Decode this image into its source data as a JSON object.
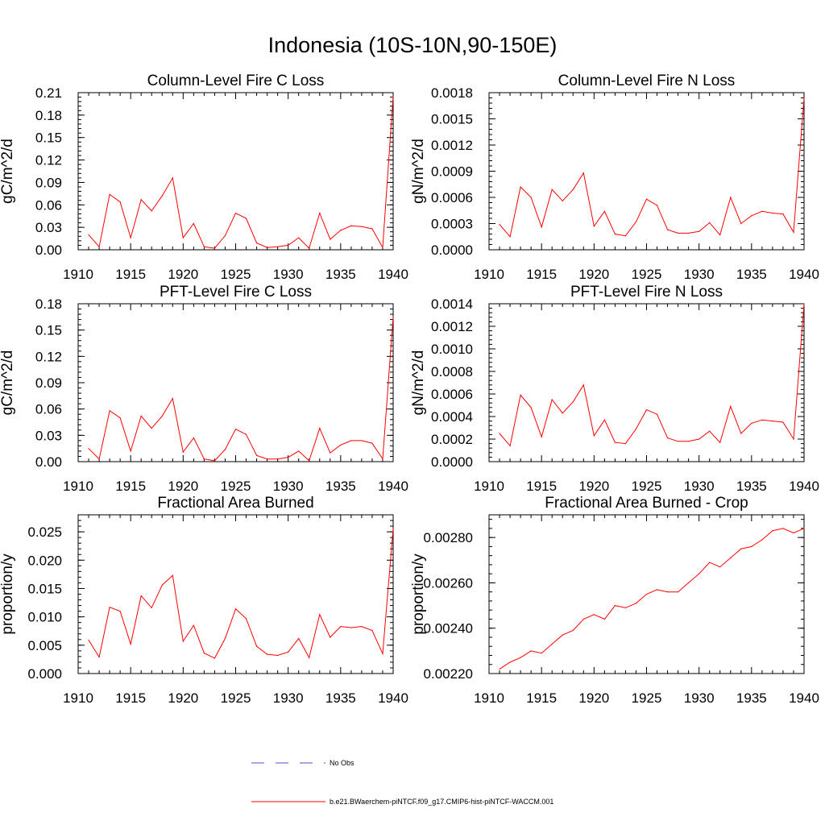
{
  "figure": {
    "title": "Indonesia (10S-10N,90-150E)"
  },
  "colors": {
    "series": "#ff0000",
    "obs": "#4f4fcf",
    "axis": "#000000"
  },
  "legend": {
    "placement": "bottom-center",
    "items": [
      {
        "label": "No Obs",
        "color": "#4f4fcf",
        "dash": "dashed"
      },
      {
        "label": "b.e21.BWaerchem-piNTCF.f09_g17.CMIP6-hist-piNTCF-WACCM.001",
        "color": "#ff0000",
        "dash": "solid"
      }
    ]
  },
  "chart_data": [
    {
      "type": "line",
      "title": "Column-Level Fire C Loss",
      "ylabel": "gC/m^2/d",
      "xlim": [
        1910,
        1940
      ],
      "ylim": [
        0,
        0.21
      ],
      "xticks": [
        "1910",
        "1915",
        "1920",
        "1925",
        "1930",
        "1935",
        "1940"
      ],
      "yticks": [
        "0.00",
        "0.03",
        "0.06",
        "0.09",
        "0.12",
        "0.15",
        "0.18",
        "0.21"
      ],
      "x": [
        1911,
        1912,
        1913,
        1914,
        1915,
        1916,
        1917,
        1918,
        1919,
        1920,
        1921,
        1922,
        1923,
        1924,
        1925,
        1926,
        1927,
        1928,
        1929,
        1930,
        1931,
        1932,
        1933,
        1934,
        1935,
        1936,
        1937,
        1938,
        1939,
        1940
      ],
      "values": [
        0.02,
        0.004,
        0.074,
        0.064,
        0.016,
        0.067,
        0.052,
        0.072,
        0.096,
        0.016,
        0.035,
        0.004,
        0.002,
        0.019,
        0.049,
        0.042,
        0.009,
        0.003,
        0.004,
        0.006,
        0.016,
        0.002,
        0.049,
        0.014,
        0.026,
        0.032,
        0.031,
        0.028,
        0.003,
        0.205
      ]
    },
    {
      "type": "line",
      "title": "Column-Level Fire N Loss",
      "ylabel": "gN/m^2/d",
      "xlim": [
        1910,
        1940
      ],
      "ylim": [
        0,
        0.0018
      ],
      "xticks": [
        "1910",
        "1915",
        "1920",
        "1925",
        "1930",
        "1935",
        "1940"
      ],
      "yticks": [
        "0.0000",
        "0.0003",
        "0.0006",
        "0.0009",
        "0.0012",
        "0.0015",
        "0.0018"
      ],
      "x": [
        1911,
        1912,
        1913,
        1914,
        1915,
        1916,
        1917,
        1918,
        1919,
        1920,
        1921,
        1922,
        1923,
        1924,
        1925,
        1926,
        1927,
        1928,
        1929,
        1930,
        1931,
        1932,
        1933,
        1934,
        1935,
        1936,
        1937,
        1938,
        1939,
        1940
      ],
      "values": [
        0.00029,
        0.00015,
        0.00072,
        0.0006,
        0.00026,
        0.00069,
        0.00056,
        0.00069,
        0.00088,
        0.00027,
        0.00044,
        0.00018,
        0.00016,
        0.00032,
        0.00058,
        0.00051,
        0.00023,
        0.00019,
        0.00019,
        0.00021,
        0.00031,
        0.00017,
        0.0006,
        0.0003,
        0.00039,
        0.00044,
        0.00042,
        0.00041,
        0.0002,
        0.00174
      ]
    },
    {
      "type": "line",
      "title": "PFT-Level Fire C Loss",
      "ylabel": "gC/m^2/d",
      "xlim": [
        1910,
        1940
      ],
      "ylim": [
        0,
        0.18
      ],
      "xticks": [
        "1910",
        "1915",
        "1920",
        "1925",
        "1930",
        "1935",
        "1940"
      ],
      "yticks": [
        "0.00",
        "0.03",
        "0.06",
        "0.09",
        "0.12",
        "0.15",
        "0.18"
      ],
      "x": [
        1911,
        1912,
        1913,
        1914,
        1915,
        1916,
        1917,
        1918,
        1919,
        1920,
        1921,
        1922,
        1923,
        1924,
        1925,
        1926,
        1927,
        1928,
        1929,
        1930,
        1931,
        1932,
        1933,
        1934,
        1935,
        1936,
        1937,
        1938,
        1939,
        1940
      ],
      "values": [
        0.015,
        0.003,
        0.058,
        0.05,
        0.012,
        0.052,
        0.038,
        0.052,
        0.072,
        0.011,
        0.027,
        0.003,
        0.001,
        0.014,
        0.037,
        0.031,
        0.007,
        0.003,
        0.003,
        0.005,
        0.012,
        0.001,
        0.038,
        0.01,
        0.019,
        0.024,
        0.024,
        0.021,
        0.003,
        0.165
      ]
    },
    {
      "type": "line",
      "title": "PFT-Level Fire N Loss",
      "ylabel": "gN/m^2/d",
      "xlim": [
        1910,
        1940
      ],
      "ylim": [
        0,
        0.0014
      ],
      "xticks": [
        "1910",
        "1915",
        "1920",
        "1925",
        "1930",
        "1935",
        "1940"
      ],
      "yticks": [
        "0.0000",
        "0.0002",
        "0.0004",
        "0.0006",
        "0.0008",
        "0.0010",
        "0.0012",
        "0.0014"
      ],
      "x": [
        1911,
        1912,
        1913,
        1914,
        1915,
        1916,
        1917,
        1918,
        1919,
        1920,
        1921,
        1922,
        1923,
        1924,
        1925,
        1926,
        1927,
        1928,
        1929,
        1930,
        1931,
        1932,
        1933,
        1934,
        1935,
        1936,
        1937,
        1938,
        1939,
        1940
      ],
      "values": [
        0.00025,
        0.00014,
        0.00059,
        0.00048,
        0.00022,
        0.00055,
        0.00043,
        0.00053,
        0.00068,
        0.00023,
        0.00037,
        0.00017,
        0.00016,
        0.00029,
        0.00046,
        0.00042,
        0.00021,
        0.00018,
        0.00018,
        0.0002,
        0.00027,
        0.00017,
        0.00049,
        0.00025,
        0.00034,
        0.00037,
        0.00036,
        0.00035,
        0.0002,
        0.0014
      ]
    },
    {
      "type": "line",
      "title": "Fractional Area Burned",
      "ylabel": "proportion/y",
      "xlim": [
        1910,
        1940
      ],
      "ylim": [
        0,
        0.028
      ],
      "xticks": [
        "1910",
        "1915",
        "1920",
        "1925",
        "1930",
        "1935",
        "1940"
      ],
      "yticks": [
        "0.000",
        "0.005",
        "0.010",
        "0.015",
        "0.020",
        "0.025"
      ],
      "ytick_values": [
        0,
        0.005,
        0.01,
        0.015,
        0.02,
        0.025
      ],
      "x": [
        1911,
        1912,
        1913,
        1914,
        1915,
        1916,
        1917,
        1918,
        1919,
        1920,
        1921,
        1922,
        1923,
        1924,
        1925,
        1926,
        1927,
        1928,
        1929,
        1930,
        1931,
        1932,
        1933,
        1934,
        1935,
        1936,
        1937,
        1938,
        1939,
        1940
      ],
      "values": [
        0.0059,
        0.0029,
        0.0117,
        0.011,
        0.0052,
        0.0137,
        0.0116,
        0.0156,
        0.0173,
        0.0057,
        0.0085,
        0.0036,
        0.0027,
        0.0062,
        0.0114,
        0.0097,
        0.0048,
        0.0034,
        0.0032,
        0.0038,
        0.0062,
        0.0028,
        0.0104,
        0.0064,
        0.0083,
        0.0081,
        0.0083,
        0.0076,
        0.0035,
        0.0256
      ]
    },
    {
      "type": "line",
      "title": "Fractional Area Burned - Crop",
      "ylabel": "proportion/y",
      "xlim": [
        1910,
        1940
      ],
      "ylim": [
        0.0022,
        0.0029
      ],
      "xticks": [
        "1910",
        "1915",
        "1920",
        "1925",
        "1930",
        "1935",
        "1940"
      ],
      "yticks": [
        "0.00220",
        "0.00240",
        "0.00260",
        "0.00280"
      ],
      "ytick_values": [
        0.0022,
        0.0024,
        0.0026,
        0.0028
      ],
      "x": [
        1911,
        1912,
        1913,
        1914,
        1915,
        1916,
        1917,
        1918,
        1919,
        1920,
        1921,
        1922,
        1923,
        1924,
        1925,
        1926,
        1927,
        1928,
        1929,
        1930,
        1931,
        1932,
        1933,
        1934,
        1935,
        1936,
        1937,
        1938,
        1939,
        1940
      ],
      "values": [
        0.00222,
        0.00225,
        0.00227,
        0.0023,
        0.00229,
        0.00233,
        0.00237,
        0.00239,
        0.00244,
        0.00246,
        0.00244,
        0.0025,
        0.00249,
        0.00251,
        0.00255,
        0.00257,
        0.00256,
        0.00256,
        0.0026,
        0.00264,
        0.00269,
        0.00267,
        0.00271,
        0.00275,
        0.00276,
        0.00279,
        0.00283,
        0.00284,
        0.00282,
        0.00284
      ]
    }
  ]
}
